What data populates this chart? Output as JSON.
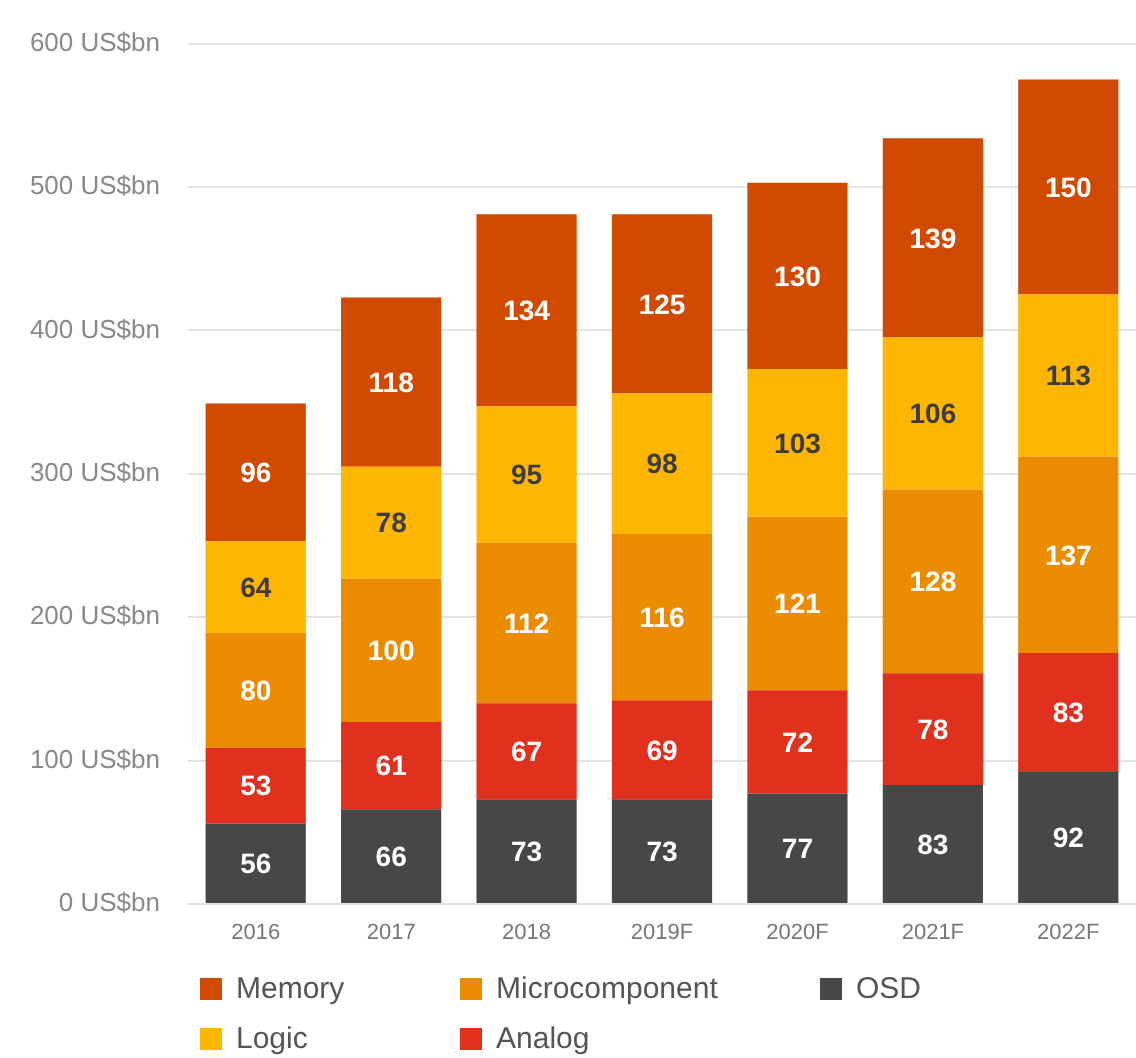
{
  "chart_data": {
    "type": "bar",
    "stacked": true,
    "categories": [
      "2016",
      "2017",
      "2018",
      "2019F",
      "2020F",
      "2021F",
      "2022F"
    ],
    "series": [
      {
        "name": "OSD",
        "color": "#474747",
        "values": [
          56,
          66,
          73,
          73,
          77,
          83,
          92
        ]
      },
      {
        "name": "Analog",
        "color": "#e0301e",
        "values": [
          53,
          61,
          67,
          69,
          72,
          78,
          83
        ]
      },
      {
        "name": "Microcomponent",
        "color": "#eb8c00",
        "values": [
          80,
          100,
          112,
          116,
          121,
          128,
          137
        ]
      },
      {
        "name": "Logic",
        "color": "#ffb600",
        "values": [
          64,
          78,
          95,
          98,
          103,
          106,
          113
        ]
      },
      {
        "name": "Memory",
        "color": "#d04a02",
        "values": [
          96,
          118,
          134,
          125,
          130,
          139,
          150
        ]
      }
    ],
    "ylim": [
      0,
      600
    ],
    "yticks": [
      {
        "value": 0,
        "label": "0 US$bn"
      },
      {
        "value": 100,
        "label": "100 US$bn"
      },
      {
        "value": 200,
        "label": "200 US$bn"
      },
      {
        "value": 300,
        "label": "300 US$bn"
      },
      {
        "value": 400,
        "label": "400 US$bn"
      },
      {
        "value": 500,
        "label": "500 US$bn"
      },
      {
        "value": 600,
        "label": "600 US$bn"
      }
    ],
    "grid": "y",
    "legend": "bottom",
    "data_labels": true
  }
}
